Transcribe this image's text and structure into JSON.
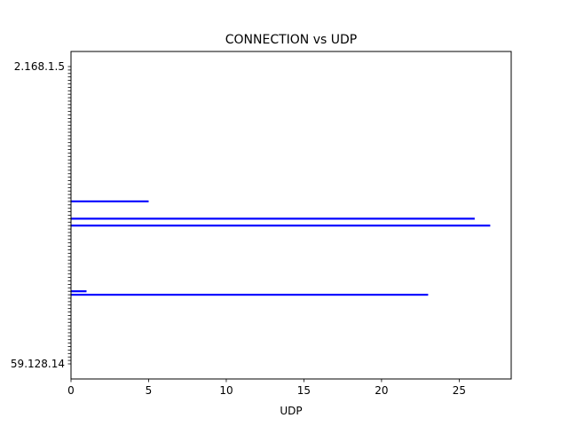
{
  "chart_data": {
    "type": "bar",
    "orientation": "horizontal",
    "title": "CONNECTION vs UDP",
    "xlabel": "UDP",
    "ylabel": "",
    "xlim": [
      0,
      28.35
    ],
    "xticks": [
      0,
      5,
      10,
      15,
      20,
      25
    ],
    "grid": false,
    "bar_color": "#0000ff",
    "categories": [
      "59.128.14",
      "",
      "",
      "",
      "",
      "",
      "",
      "",
      "",
      "",
      "",
      "",
      "",
      "",
      "",
      "",
      "",
      "",
      "",
      "",
      "",
      "",
      "",
      "",
      "",
      "",
      "",
      "",
      "",
      "",
      "",
      "",
      "",
      "",
      "",
      "",
      "",
      "",
      "",
      "",
      "",
      "",
      "",
      "",
      "",
      "",
      "",
      "",
      "",
      "",
      "",
      "",
      "",
      "",
      "",
      "",
      "",
      "",
      "",
      "",
      "",
      "",
      "",
      "",
      "",
      "",
      "",
      "",
      "",
      "",
      "",
      "",
      "",
      "",
      "",
      "",
      "",
      "",
      "",
      "",
      "",
      "",
      "",
      "",
      "",
      "",
      "2.168.1.5"
    ],
    "values": [
      0,
      0,
      0,
      0,
      0,
      0,
      0,
      0,
      0,
      0,
      0,
      0,
      0,
      0,
      0,
      0,
      0,
      0,
      0,
      0,
      23,
      1,
      0,
      0,
      0,
      0,
      0,
      0,
      0,
      0,
      0,
      0,
      0,
      0,
      0,
      0,
      0,
      0,
      0,
      0,
      27,
      0,
      26,
      0,
      0,
      0,
      0,
      5,
      0,
      0,
      0,
      0,
      0,
      0,
      0,
      0,
      0,
      0,
      0,
      0,
      0,
      0,
      0,
      0,
      0,
      0,
      0,
      0,
      0,
      0,
      0,
      0,
      0,
      0,
      0,
      0,
      0,
      0,
      0,
      0,
      0,
      0,
      0,
      0,
      0,
      0,
      0
    ]
  }
}
